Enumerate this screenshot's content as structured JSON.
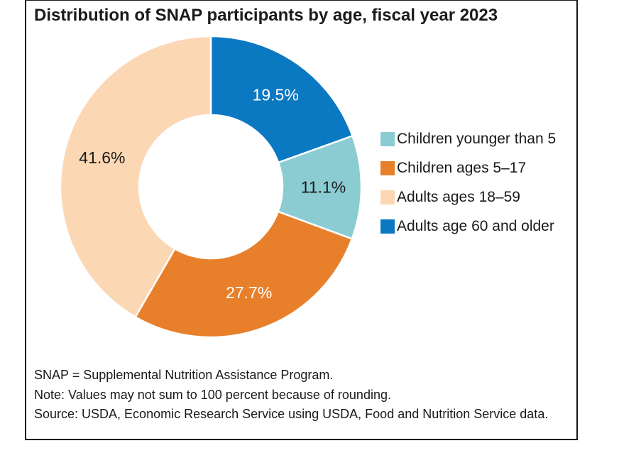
{
  "frame": {
    "border_color": "#1a1a1a",
    "background": "#ffffff"
  },
  "chart_data": {
    "type": "donut",
    "title": "Distribution of SNAP participants by age, fiscal year 2023",
    "unit": "percent",
    "start_angle_deg": 0,
    "direction": "clockwise",
    "inner_radius_ratio": 0.476,
    "grid": false,
    "legend_position": "right",
    "segments": [
      {
        "label": "Adults age 60 and older",
        "value": 19.5,
        "display": "19.5%",
        "color": "#0b78c2",
        "label_color": "#ffffff"
      },
      {
        "label": "Children younger than 5",
        "value": 11.1,
        "display": "11.1%",
        "color": "#8accd2",
        "label_color": "#1a1a1a"
      },
      {
        "label": "Children ages 5–17",
        "value": 27.7,
        "display": "27.7%",
        "color": "#e8802b",
        "label_color": "#ffffff"
      },
      {
        "label": "Adults ages 18–59",
        "value": 41.6,
        "display": "41.6%",
        "color": "#fbd7b4",
        "label_color": "#1a1a1a"
      }
    ],
    "legend_order": [
      1,
      2,
      3,
      0
    ]
  },
  "notes": {
    "lines": [
      "SNAP = Supplemental Nutrition Assistance Program.",
      "Note: Values may not sum to 100 percent because of rounding.",
      "Source: USDA, Economic Research Service using USDA, Food and Nutrition Service data."
    ]
  }
}
